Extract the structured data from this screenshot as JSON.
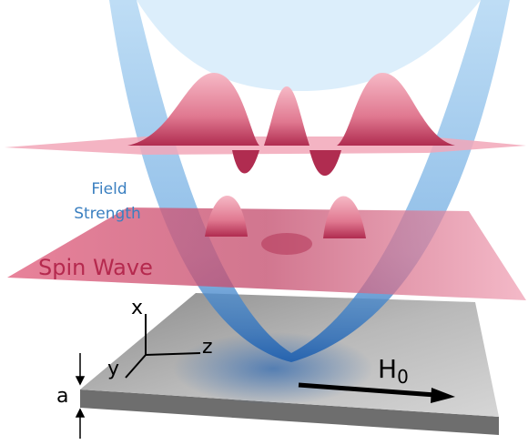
{
  "labels": {
    "field_strength": [
      "Field",
      "Strength"
    ],
    "spin_wave": "Spin Wave",
    "axes": {
      "x": "x",
      "y": "y",
      "z": "z"
    },
    "thickness": "a",
    "field_vector": {
      "symbol": "H",
      "subscript": "0"
    }
  }
}
